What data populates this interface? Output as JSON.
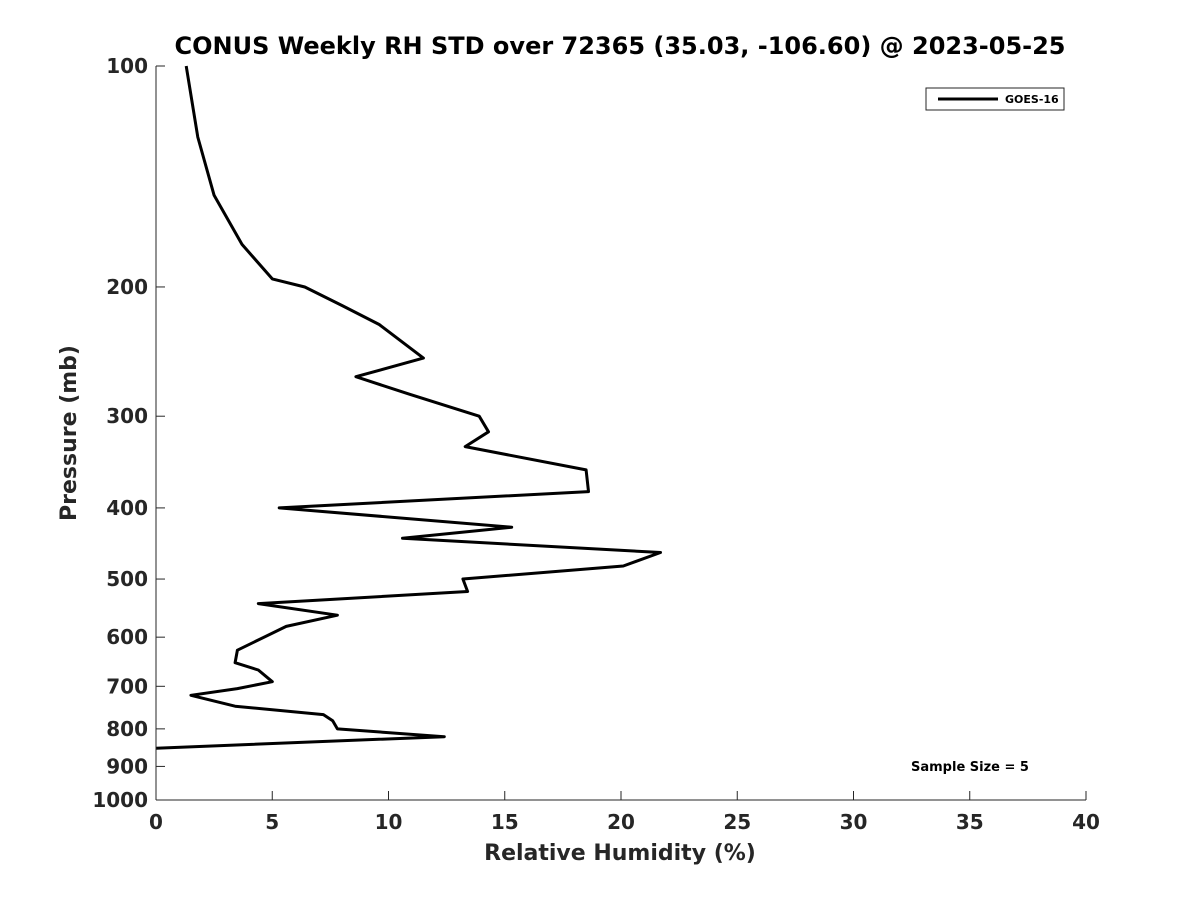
{
  "chart_data": {
    "type": "line",
    "title": "CONUS Weekly RH STD over 72365 (35.03, -106.60) @ 2023-05-25",
    "xlabel": "Relative Humidity (%)",
    "ylabel": "Pressure (mb)",
    "xlim": [
      0,
      40
    ],
    "ylim": [
      100,
      1000
    ],
    "y_scale": "log",
    "y_reversed": true,
    "grid": false,
    "legend_position": "top-right",
    "x_ticks": [
      "0",
      "5",
      "10",
      "15",
      "20",
      "25",
      "30",
      "35",
      "40"
    ],
    "y_ticks": [
      "100",
      "200",
      "300",
      "400",
      "500",
      "600",
      "700",
      "800",
      "900",
      "1000"
    ],
    "series": [
      {
        "name": "GOES-16",
        "color": "#000000",
        "points": [
          [
            1.3,
            100
          ],
          [
            1.8,
            125
          ],
          [
            2.5,
            150
          ],
          [
            3.7,
            175
          ],
          [
            5.0,
            195
          ],
          [
            6.4,
            200
          ],
          [
            8.0,
            212
          ],
          [
            9.6,
            225
          ],
          [
            11.5,
            250
          ],
          [
            8.6,
            265
          ],
          [
            10.9,
            280
          ],
          [
            13.9,
            300
          ],
          [
            14.3,
            315
          ],
          [
            13.3,
            330
          ],
          [
            18.5,
            355
          ],
          [
            18.6,
            380
          ],
          [
            5.3,
            400
          ],
          [
            15.3,
            425
          ],
          [
            10.6,
            440
          ],
          [
            21.7,
            460
          ],
          [
            20.1,
            480
          ],
          [
            13.2,
            500
          ],
          [
            13.4,
            520
          ],
          [
            4.4,
            540
          ],
          [
            7.8,
            560
          ],
          [
            5.6,
            580
          ],
          [
            3.5,
            625
          ],
          [
            3.4,
            650
          ],
          [
            4.4,
            665
          ],
          [
            5.0,
            690
          ],
          [
            3.5,
            705
          ],
          [
            1.5,
            720
          ],
          [
            3.4,
            745
          ],
          [
            7.2,
            765
          ],
          [
            7.6,
            780
          ],
          [
            7.8,
            800
          ],
          [
            12.4,
            820
          ],
          [
            0.0,
            850
          ]
        ]
      }
    ],
    "annotations": [
      "Sample Size = 5"
    ]
  }
}
